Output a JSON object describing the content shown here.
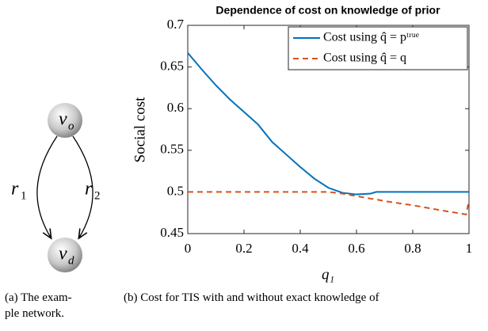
{
  "diagram": {
    "nodes": [
      {
        "label": "v",
        "subscript": "o"
      },
      {
        "label": "v",
        "subscript": "d"
      }
    ],
    "edges": [
      {
        "label": "r",
        "subscript": "1"
      },
      {
        "label": "r",
        "subscript": "2"
      }
    ]
  },
  "chart_data": {
    "type": "line",
    "title": "Dependence of cost on knowledge of prior",
    "x_label": "q₁",
    "y_label": "Social cost",
    "x": [
      0,
      0.05,
      0.1,
      0.15,
      0.2,
      0.25,
      0.3,
      0.35,
      0.4,
      0.45,
      0.5,
      0.55,
      0.6,
      0.65,
      0.67,
      0.7,
      0.8,
      0.9,
      0.99,
      1
    ],
    "series": [
      {
        "name": "Cost using q̂ = pᵗʳᵘᵉ",
        "color": "#0072bd",
        "dash": false,
        "values": [
          0.667,
          0.647,
          0.628,
          0.611,
          0.596,
          0.581,
          0.56,
          0.545,
          0.53,
          0.516,
          0.505,
          0.499,
          0.497,
          0.498,
          0.5,
          0.5,
          0.5,
          0.5,
          0.5,
          0.5
        ]
      },
      {
        "name": "Cost using q̂ = q",
        "color": "#d95319",
        "dash": true,
        "values": [
          0.5,
          0.5,
          0.5,
          0.5,
          0.5,
          0.5,
          0.5,
          0.5,
          0.5,
          0.5,
          0.5,
          0.498,
          0.495,
          0.492,
          0.491,
          0.489,
          0.484,
          0.478,
          0.473,
          0.49
        ]
      }
    ],
    "xlim": [
      0,
      1
    ],
    "xticks": [
      0,
      0.2,
      0.4,
      0.6,
      0.8,
      1
    ],
    "ylim": [
      0.45,
      0.7
    ],
    "yticks": [
      0.45,
      0.5,
      0.55,
      0.6,
      0.65,
      0.7
    ],
    "legend": "top-right"
  },
  "captions": {
    "a": [
      "(a) The exam-",
      "ple network."
    ],
    "b": [
      "(b) Cost for TIS with and without exact knowledge of"
    ]
  }
}
